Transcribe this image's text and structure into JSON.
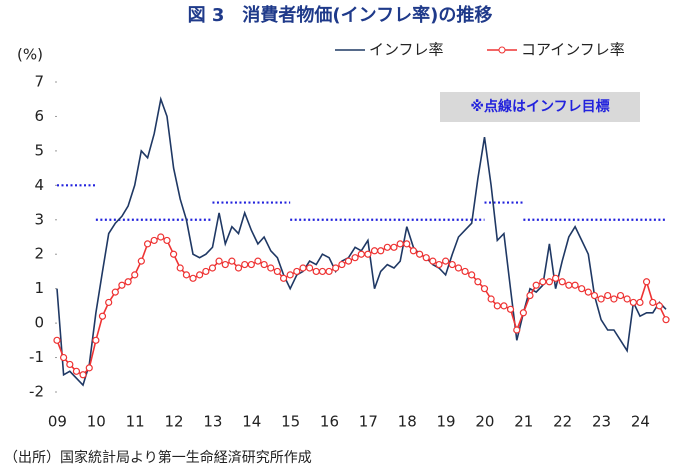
{
  "chart_data": {
    "type": "line",
    "title": "図 3　消費者物価(インフレ率)の推移",
    "y_label": "(%)",
    "source": "（出所）国家統計局より第一生命経済研究所作成",
    "annotation": "※点線はインフレ目標",
    "xlim": [
      2009,
      2024.85
    ],
    "ylim": [
      -2,
      7
    ],
    "yticks": [
      -2,
      -1,
      0,
      1,
      2,
      3,
      4,
      5,
      6,
      7
    ],
    "xticks": [
      {
        "value": 2009.5,
        "label": "09"
      },
      {
        "value": 2010.5,
        "label": "10"
      },
      {
        "value": 2011.5,
        "label": "11"
      },
      {
        "value": 2012.5,
        "label": "12"
      },
      {
        "value": 2013.5,
        "label": "13"
      },
      {
        "value": 2014.5,
        "label": "14"
      },
      {
        "value": 2015.5,
        "label": "15"
      },
      {
        "value": 2016.5,
        "label": "16"
      },
      {
        "value": 2017.5,
        "label": "17"
      },
      {
        "value": 2018.5,
        "label": "18"
      },
      {
        "value": 2019.5,
        "label": "19"
      },
      {
        "value": 2020.5,
        "label": "20"
      },
      {
        "value": 2021.5,
        "label": "21"
      },
      {
        "value": 2022.5,
        "label": "22"
      },
      {
        "value": 2023.5,
        "label": "23"
      },
      {
        "value": 2024.5,
        "label": "24"
      }
    ],
    "legend": "top-right",
    "targets": {
      "color": "#2222dd",
      "segments": [
        {
          "x": [
            2009,
            2010
          ],
          "value": 4
        },
        {
          "x": [
            2010,
            2013
          ],
          "value": 3
        },
        {
          "x": [
            2013,
            2015
          ],
          "value": 3.5
        },
        {
          "x": [
            2015,
            2020
          ],
          "value": 3
        },
        {
          "x": [
            2020,
            2021
          ],
          "value": 3.5
        },
        {
          "x": [
            2021,
            2024.7
          ],
          "value": 3
        }
      ]
    },
    "x": [
      2009,
      2009.17,
      2009.33,
      2009.5,
      2009.67,
      2009.83,
      2010,
      2010.17,
      2010.33,
      2010.5,
      2010.67,
      2010.83,
      2011,
      2011.17,
      2011.33,
      2011.5,
      2011.67,
      2011.83,
      2012,
      2012.17,
      2012.33,
      2012.5,
      2012.67,
      2012.83,
      2013,
      2013.17,
      2013.33,
      2013.5,
      2013.67,
      2013.83,
      2014,
      2014.17,
      2014.33,
      2014.5,
      2014.67,
      2014.83,
      2015,
      2015.17,
      2015.33,
      2015.5,
      2015.67,
      2015.83,
      2016,
      2016.17,
      2016.33,
      2016.5,
      2016.67,
      2016.83,
      2017,
      2017.17,
      2017.33,
      2017.5,
      2017.67,
      2017.83,
      2018,
      2018.17,
      2018.33,
      2018.5,
      2018.67,
      2018.83,
      2019,
      2019.17,
      2019.33,
      2019.5,
      2019.67,
      2019.83,
      2020,
      2020.17,
      2020.33,
      2020.5,
      2020.67,
      2020.83,
      2021,
      2021.17,
      2021.33,
      2021.5,
      2021.67,
      2021.83,
      2022,
      2022.17,
      2022.33,
      2022.5,
      2022.67,
      2022.83,
      2023,
      2023.17,
      2023.33,
      2023.5,
      2023.67,
      2023.83,
      2024,
      2024.17,
      2024.33,
      2024.5,
      2024.67
    ],
    "series": [
      {
        "name": "インフレ率",
        "color": "#1f3864",
        "marker": false,
        "values": [
          1.0,
          -1.5,
          -1.4,
          -1.6,
          -1.8,
          -1.2,
          0.3,
          1.5,
          2.6,
          2.9,
          3.1,
          3.4,
          4.0,
          5.0,
          4.8,
          5.5,
          6.5,
          6.0,
          4.5,
          3.6,
          3.0,
          2.0,
          1.9,
          2.0,
          2.2,
          3.2,
          2.3,
          2.8,
          2.6,
          3.2,
          2.7,
          2.3,
          2.5,
          2.1,
          1.9,
          1.4,
          1.0,
          1.4,
          1.5,
          1.8,
          1.7,
          2.0,
          1.9,
          1.5,
          1.8,
          1.9,
          2.2,
          2.1,
          2.4,
          1.0,
          1.5,
          1.7,
          1.6,
          1.8,
          2.8,
          2.2,
          2.0,
          1.9,
          1.7,
          1.6,
          1.4,
          2.0,
          2.5,
          2.7,
          2.9,
          4.2,
          5.4,
          4.0,
          2.4,
          2.6,
          1.0,
          -0.5,
          0.3,
          1.0,
          0.9,
          1.1,
          2.3,
          1.0,
          1.8,
          2.5,
          2.8,
          2.4,
          2.0,
          0.8,
          0.1,
          -0.2,
          -0.2,
          -0.5,
          -0.8,
          0.6,
          0.2,
          0.3,
          0.3,
          0.6,
          0.4
        ]
      },
      {
        "name": "コアインフレ率",
        "color": "#ee3333",
        "marker": true,
        "values": [
          -0.5,
          -1.0,
          -1.2,
          -1.4,
          -1.5,
          -1.3,
          -0.5,
          0.2,
          0.6,
          0.9,
          1.1,
          1.2,
          1.4,
          1.8,
          2.3,
          2.4,
          2.5,
          2.4,
          2.0,
          1.6,
          1.4,
          1.3,
          1.4,
          1.5,
          1.6,
          1.8,
          1.7,
          1.8,
          1.6,
          1.7,
          1.7,
          1.8,
          1.7,
          1.6,
          1.5,
          1.3,
          1.4,
          1.5,
          1.6,
          1.6,
          1.5,
          1.5,
          1.5,
          1.6,
          1.7,
          1.8,
          1.9,
          2.0,
          2.0,
          2.1,
          2.1,
          2.2,
          2.2,
          2.3,
          2.3,
          2.1,
          2.0,
          1.9,
          1.8,
          1.7,
          1.8,
          1.7,
          1.6,
          1.5,
          1.4,
          1.2,
          1.0,
          0.7,
          0.5,
          0.5,
          0.4,
          -0.2,
          0.3,
          0.8,
          1.1,
          1.2,
          1.2,
          1.3,
          1.2,
          1.1,
          1.1,
          1.0,
          0.9,
          0.8,
          0.7,
          0.8,
          0.7,
          0.8,
          0.7,
          0.6,
          0.6,
          1.2,
          0.6,
          0.5,
          0.1
        ]
      }
    ]
  }
}
